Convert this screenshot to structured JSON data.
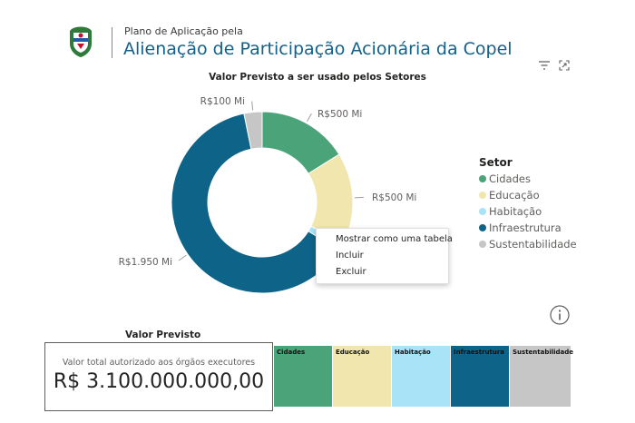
{
  "header": {
    "subtitle": "Plano de Aplicação pela",
    "title": "Alienação de Participação Acionária da Copel"
  },
  "visual_actions": {
    "filter_icon": "filter-icon",
    "focus_icon": "focus-mode-icon"
  },
  "colors": {
    "Cidades": "#4ba37a",
    "Educação": "#f0e6ae",
    "Habitação": "#a9e3f8",
    "Infraestrutura": "#0e6388",
    "Sustentabilidade": "#c6c6c6",
    "title_blue": "#12618a"
  },
  "chart_data": {
    "type": "pie",
    "title": "Valor Previsto a ser usado pelos Setores",
    "legend_title": "Setor",
    "legend_position": "right",
    "donut": true,
    "categories": [
      "Cidades",
      "Educação",
      "Habitação",
      "Infraestrutura",
      "Sustentabilidade"
    ],
    "values": [
      500,
      500,
      50,
      1950,
      100
    ],
    "unit": "R$ Mi",
    "data_labels": [
      "R$500 Mi",
      "R$500 Mi",
      "",
      "R$1.950 Mi",
      "R$100 Mi"
    ]
  },
  "context_menu": {
    "items": [
      "Mostrar como uma tabela",
      "Incluir",
      "Excluir"
    ]
  },
  "card": {
    "heading": "Valor Previsto",
    "label": "Valor total autorizado aos órgãos executores",
    "value": "R$ 3.100.000.000,00"
  },
  "treemap": {
    "tiles": [
      "Cidades",
      "Educação",
      "Habitação",
      "Infraestrutura",
      "Sustentabilidade"
    ]
  }
}
